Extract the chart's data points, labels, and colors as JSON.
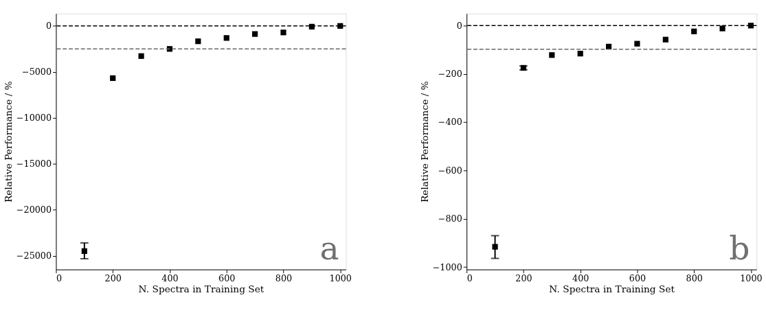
{
  "chart_data": [
    {
      "type": "scatter",
      "xlabel": "N. Spectra in Training Set",
      "ylabel": "Relative Performance / %",
      "x": [
        100,
        200,
        300,
        400,
        500,
        600,
        700,
        800,
        900,
        1000
      ],
      "series": [
        {
          "color": "#000000",
          "values": [
            -24500,
            -5680,
            -3280,
            -2500,
            -1670,
            -1310,
            -880,
            -710,
            -80,
            0
          ],
          "errors": [
            [
              -25330,
              -23610
            ],
            null,
            null,
            null,
            null,
            null,
            null,
            null,
            null,
            null
          ]
        }
      ],
      "marker": "square",
      "xlim": [
        0,
        1020
      ],
      "xticks": [
        0,
        200,
        400,
        600,
        800,
        1000
      ],
      "ylim": [
        -26500,
        1350
      ],
      "yticks": [
        -25000,
        -20000,
        -15000,
        -10000,
        -5000,
        0
      ],
      "ref_lines": [
        {
          "axis": "y",
          "value": 0,
          "color": "#000000",
          "line_style": "dashed"
        },
        {
          "axis": "y",
          "value": -2500,
          "color": "#666666",
          "line_style": "dashed"
        }
      ],
      "annotations": [
        "a"
      ],
      "grid": false
    },
    {
      "type": "scatter",
      "xlabel": "N. Spectra in Training Set",
      "ylabel": "Relative Performance / %",
      "x": [
        100,
        200,
        300,
        400,
        500,
        600,
        700,
        800,
        900,
        1000
      ],
      "series": [
        {
          "color": "#000000",
          "values": [
            -916,
            -175,
            -122,
            -116,
            -87,
            -75,
            -58,
            -24,
            -12,
            0
          ],
          "errors": [
            [
              -964,
              -870
            ],
            [
              -183,
              -167
            ],
            null,
            null,
            null,
            null,
            null,
            null,
            null,
            null
          ]
        }
      ],
      "marker": "square",
      "xlim": [
        0,
        1020
      ],
      "xticks": [
        0,
        200,
        400,
        600,
        800,
        1000
      ],
      "ylim": [
        -1010,
        50
      ],
      "yticks": [
        -1000,
        -800,
        -600,
        -400,
        -200,
        0
      ],
      "ref_lines": [
        {
          "axis": "y",
          "value": 0,
          "color": "#000000",
          "line_style": "dashed"
        },
        {
          "axis": "y",
          "value": -98,
          "color": "#666666",
          "line_style": "dashed"
        }
      ],
      "annotations": [
        "b"
      ],
      "grid": false
    }
  ]
}
